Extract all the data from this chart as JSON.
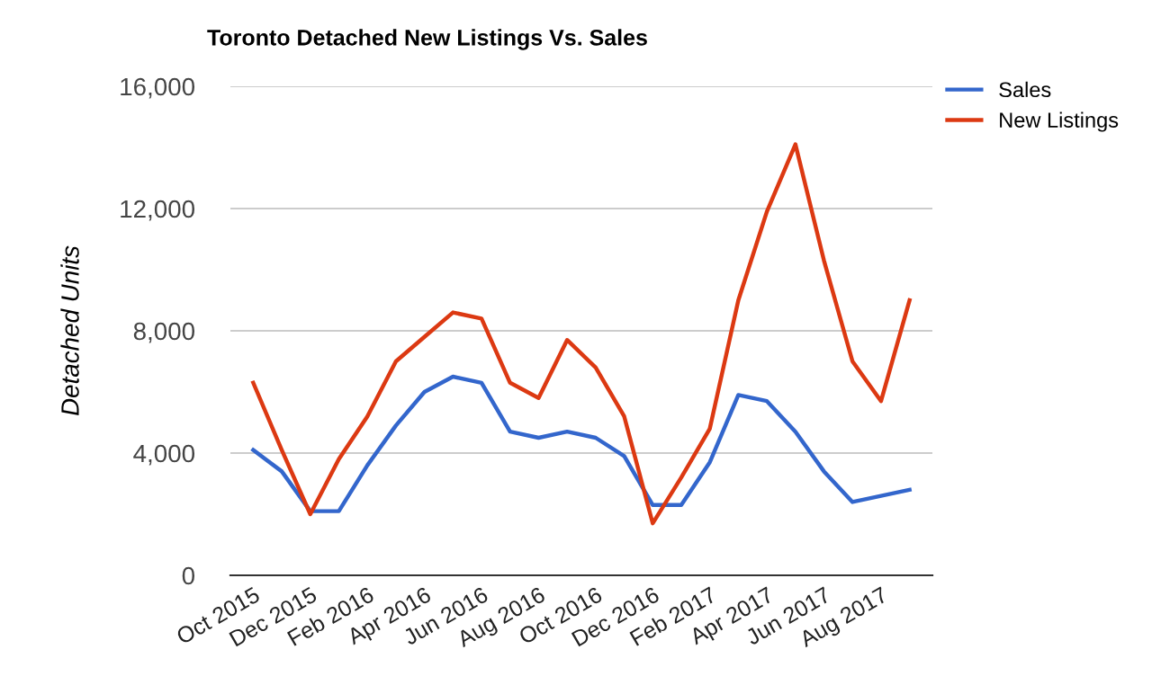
{
  "chart_data": {
    "type": "line",
    "title": "Toronto Detached New Listings Vs. Sales",
    "ylabel": "Detached Units",
    "categories": [
      "Oct 2015",
      null,
      "Dec 2015",
      null,
      "Feb 2016",
      null,
      "Apr 2016",
      null,
      "Jun 2016",
      null,
      "Aug 2016",
      null,
      "Oct 2016",
      null,
      "Dec 2016",
      null,
      "Feb 2017",
      null,
      "Apr 2017",
      null,
      "Jun 2017",
      null,
      "Aug 2017",
      null
    ],
    "series": [
      {
        "name": "Sales",
        "color": "#3366cc",
        "values": [
          4100,
          3400,
          2100,
          2100,
          3600,
          4900,
          6000,
          6500,
          6300,
          4700,
          4500,
          4700,
          4500,
          3900,
          2300,
          2300,
          3700,
          5900,
          5700,
          4700,
          3400,
          2400,
          2600,
          2800
        ]
      },
      {
        "name": "New Listings",
        "color": "#dc3912",
        "values": [
          6300,
          4100,
          2000,
          3800,
          5200,
          7000,
          7800,
          8600,
          8400,
          6300,
          5800,
          7700,
          6800,
          5200,
          1700,
          3200,
          4800,
          9000,
          11900,
          14100,
          10300,
          7000,
          5700,
          9000
        ]
      }
    ],
    "ylim": [
      0,
      16000
    ],
    "yticks": [
      {
        "value": 0,
        "label": "0"
      },
      {
        "value": 4000,
        "label": "4,000"
      },
      {
        "value": 8000,
        "label": "8,000"
      },
      {
        "value": 12000,
        "label": "12,000"
      },
      {
        "value": 16000,
        "label": "16,000"
      }
    ],
    "grid": "y",
    "legend": "top right",
    "marker": "none",
    "line_style": "solid"
  }
}
